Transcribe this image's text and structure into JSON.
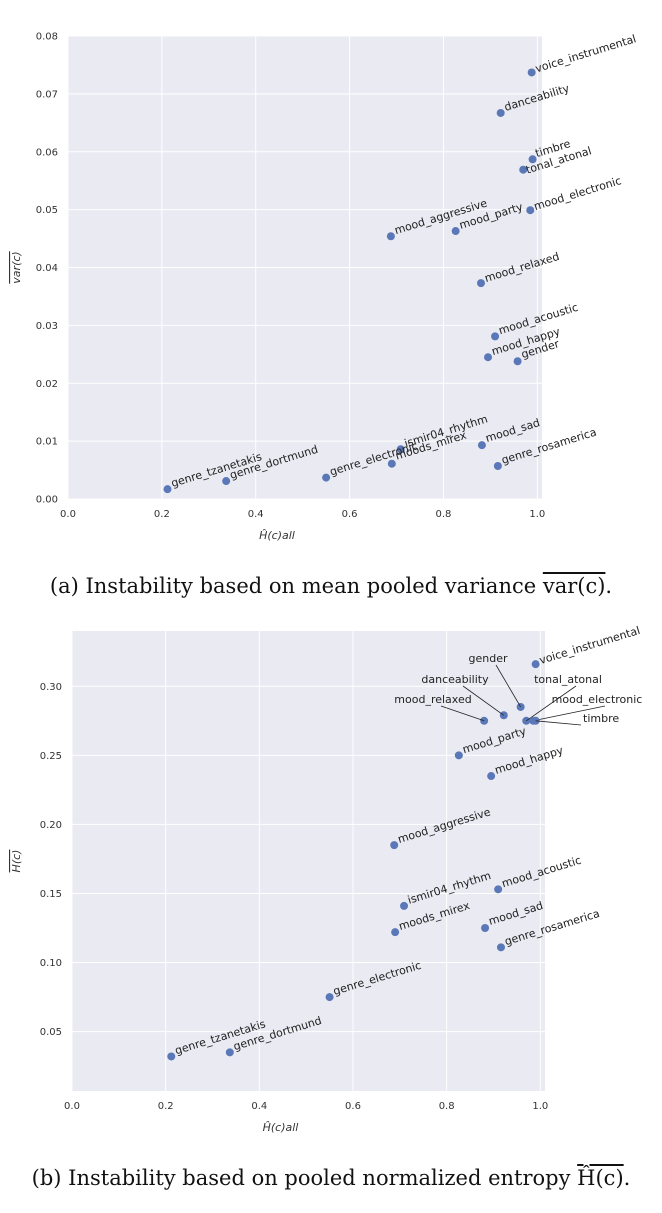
{
  "colors": {
    "panel_bg": "#e9eaf2",
    "grid": "#ffffff",
    "point": "#5a78b8"
  },
  "chart_data": [
    {
      "type": "scatter",
      "xlabel": "Ĥ(c)all",
      "ylabel": "var(c)",
      "xlim": [
        0.0,
        1.01
      ],
      "ylim": [
        0.0,
        0.08
      ],
      "xticks": [
        0.0,
        0.2,
        0.4,
        0.6,
        0.8,
        1.0
      ],
      "xtick_labels": [
        "0.0",
        "0.2",
        "0.4",
        "0.6",
        "0.8",
        "1.0"
      ],
      "yticks": [
        0.0,
        0.01,
        0.02,
        0.03,
        0.04,
        0.05,
        0.06,
        0.07,
        0.08
      ],
      "ytick_labels": [
        "0.00",
        "0.01",
        "0.02",
        "0.03",
        "0.04",
        "0.05",
        "0.06",
        "0.07",
        "0.08"
      ],
      "points": [
        {
          "name": "voice_instrumental",
          "x": 0.988,
          "y": 0.0737
        },
        {
          "name": "danceability",
          "x": 0.922,
          "y": 0.0667
        },
        {
          "name": "timbre",
          "x": 0.99,
          "y": 0.0587
        },
        {
          "name": "tonal_atonal",
          "x": 0.97,
          "y": 0.0569
        },
        {
          "name": "mood_electronic",
          "x": 0.985,
          "y": 0.0499
        },
        {
          "name": "mood_aggressive",
          "x": 0.688,
          "y": 0.0454
        },
        {
          "name": "mood_party",
          "x": 0.826,
          "y": 0.0463
        },
        {
          "name": "mood_relaxed",
          "x": 0.88,
          "y": 0.0373
        },
        {
          "name": "mood_acoustic",
          "x": 0.91,
          "y": 0.0281
        },
        {
          "name": "mood_happy",
          "x": 0.895,
          "y": 0.0245
        },
        {
          "name": "gender",
          "x": 0.958,
          "y": 0.0238
        },
        {
          "name": "ismir04_rhythm",
          "x": 0.709,
          "y": 0.0086
        },
        {
          "name": "moods_mirex",
          "x": 0.69,
          "y": 0.0061
        },
        {
          "name": "mood_sad",
          "x": 0.882,
          "y": 0.0093
        },
        {
          "name": "genre_rosamerica",
          "x": 0.916,
          "y": 0.0057
        },
        {
          "name": "genre_electronic",
          "x": 0.55,
          "y": 0.0037
        },
        {
          "name": "genre_dortmund",
          "x": 0.337,
          "y": 0.0031
        },
        {
          "name": "genre_tzanetakis",
          "x": 0.212,
          "y": 0.0017
        }
      ],
      "caption": {
        "prefix": "(a) Instability based on mean pooled variance ",
        "math": "var(c)",
        "suffix": "."
      }
    },
    {
      "type": "scatter",
      "xlabel": "Ĥ(c)all",
      "ylabel": "H(c)",
      "xlim": [
        0.0,
        1.01
      ],
      "ylim": [
        0.007,
        0.34
      ],
      "xticks": [
        0.0,
        0.2,
        0.4,
        0.6,
        0.8,
        1.0
      ],
      "xtick_labels": [
        "0.0",
        "0.2",
        "0.4",
        "0.6",
        "0.8",
        "1.0"
      ],
      "yticks": [
        0.05,
        0.1,
        0.15,
        0.2,
        0.25,
        0.3
      ],
      "ytick_labels": [
        "0.05",
        "0.10",
        "0.15",
        "0.20",
        "0.25",
        "0.30"
      ],
      "points": [
        {
          "name": "voice_instrumental",
          "x": 0.99,
          "y": 0.316
        },
        {
          "name": "gender",
          "x": 0.958,
          "y": 0.285
        },
        {
          "name": "danceability",
          "x": 0.922,
          "y": 0.279
        },
        {
          "name": "tonal_atonal",
          "x": 0.97,
          "y": 0.275
        },
        {
          "name": "mood_electronic",
          "x": 0.985,
          "y": 0.275
        },
        {
          "name": "timbre",
          "x": 0.99,
          "y": 0.275
        },
        {
          "name": "mood_relaxed",
          "x": 0.88,
          "y": 0.275
        },
        {
          "name": "mood_party",
          "x": 0.826,
          "y": 0.25
        },
        {
          "name": "mood_happy",
          "x": 0.895,
          "y": 0.235
        },
        {
          "name": "mood_aggressive",
          "x": 0.688,
          "y": 0.185
        },
        {
          "name": "ismir04_rhythm",
          "x": 0.709,
          "y": 0.141
        },
        {
          "name": "mood_acoustic",
          "x": 0.91,
          "y": 0.153
        },
        {
          "name": "moods_mirex",
          "x": 0.69,
          "y": 0.122
        },
        {
          "name": "mood_sad",
          "x": 0.882,
          "y": 0.125
        },
        {
          "name": "genre_rosamerica",
          "x": 0.916,
          "y": 0.111
        },
        {
          "name": "genre_electronic",
          "x": 0.55,
          "y": 0.075
        },
        {
          "name": "genre_dortmund",
          "x": 0.337,
          "y": 0.035
        },
        {
          "name": "genre_tzanetakis",
          "x": 0.212,
          "y": 0.032
        }
      ],
      "caption": {
        "prefix": "(b) Instability based on pooled normalized entropy ",
        "math": "Ĥ(c)",
        "suffix": "."
      }
    }
  ]
}
